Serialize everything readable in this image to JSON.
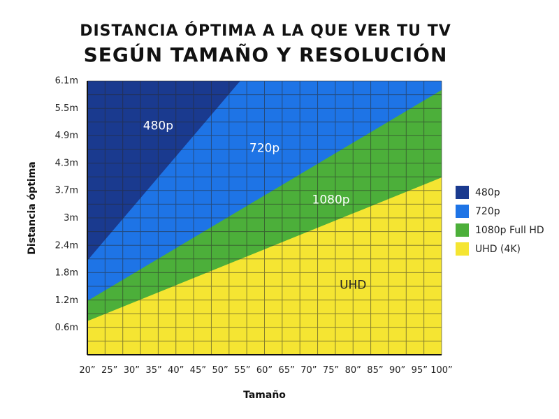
{
  "title": {
    "line1": "DISTANCIA ÓPTIMA A LA QUE VER TU TV",
    "line2": "SEGÚN TAMAÑO Y RESOLUCIÓN"
  },
  "chart_data": {
    "type": "area",
    "xlabel": "Tamaño",
    "ylabel": "Distancia óptima",
    "x_ticks": [
      "20”",
      "25”",
      "30”",
      "35”",
      "40”",
      "45”",
      "50”",
      "55”",
      "60”",
      "65”",
      "70”",
      "75”",
      "80”",
      "85”",
      "90”",
      "95”",
      "100”"
    ],
    "y_ticks": [
      "6.1m",
      "5.5m",
      "4.9m",
      "4.3m",
      "3.7m",
      "3m",
      "2.4m",
      "1.8m",
      "1.2m",
      "0.6m"
    ],
    "xlim": [
      20,
      100
    ],
    "ylim": [
      0,
      6.1
    ],
    "grid": true,
    "legend_position": "right",
    "boundaries": [
      {
        "between": [
          "480p",
          "720p"
        ],
        "points": [
          [
            20,
            2.1
          ],
          [
            54.5,
            6.1
          ]
        ]
      },
      {
        "between": [
          "720p",
          "1080p"
        ],
        "points": [
          [
            20,
            1.2
          ],
          [
            100,
            5.9
          ]
        ]
      },
      {
        "between": [
          "1080p",
          "UHD"
        ],
        "points": [
          [
            20,
            0.75
          ],
          [
            100,
            3.95
          ]
        ]
      }
    ],
    "series": [
      {
        "name": "480p",
        "legend": "480p",
        "color": "#1a3a8f",
        "label_pos": [
          36,
          5.1
        ]
      },
      {
        "name": "720p",
        "legend": "720p",
        "color": "#1e74e6",
        "label_pos": [
          60,
          4.6
        ]
      },
      {
        "name": "1080p",
        "legend": "1080p Full HD",
        "color": "#4caf3a",
        "label_pos": [
          75,
          3.45
        ]
      },
      {
        "name": "UHD",
        "legend": "UHD (4K)",
        "color": "#f5e532",
        "label_pos": [
          80,
          1.55
        ]
      }
    ],
    "grid_color": "#2a2a2a"
  }
}
